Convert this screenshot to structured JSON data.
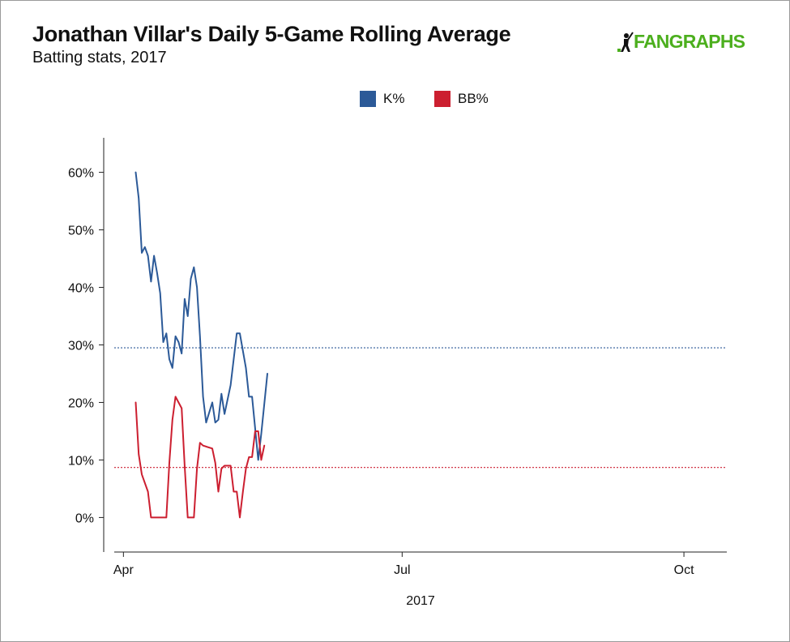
{
  "header": {
    "title": "Jonathan Villar's Daily 5-Game Rolling Average",
    "subtitle": "Batting stats, 2017",
    "logo_text": "FANGRAPHS"
  },
  "colors": {
    "k_series": "#2c5a98",
    "bb_series": "#cc1f30",
    "logo": "#4caf1e"
  },
  "chart_data": {
    "type": "line",
    "title": "Jonathan Villar's Daily 5-Game Rolling Average",
    "subtitle": "Batting stats, 2017",
    "xlabel": "2017",
    "ylabel": "",
    "x_ticks": [
      {
        "label": "Apr",
        "date": "2017-04-01"
      },
      {
        "label": "Jul",
        "date": "2017-07-01"
      },
      {
        "label": "Oct",
        "date": "2017-10-01"
      }
    ],
    "xlim": [
      "2017-03-29",
      "2017-10-15"
    ],
    "y_ticks": [
      0,
      10,
      20,
      30,
      40,
      50,
      60
    ],
    "y_tick_labels": [
      "0%",
      "10%",
      "20%",
      "30%",
      "40%",
      "50%",
      "60%"
    ],
    "ylim": [
      -6,
      66
    ],
    "grid": false,
    "legend_position": "top-center",
    "series": [
      {
        "name": "K%",
        "color": "#2c5a98",
        "league_average": 29.5,
        "points": [
          [
            "2017-04-05",
            60.0
          ],
          [
            "2017-04-06",
            55.5
          ],
          [
            "2017-04-07",
            46.0
          ],
          [
            "2017-04-08",
            47.0
          ],
          [
            "2017-04-09",
            45.5
          ],
          [
            "2017-04-10",
            41.0
          ],
          [
            "2017-04-11",
            45.5
          ],
          [
            "2017-04-12",
            42.5
          ],
          [
            "2017-04-13",
            39.0
          ],
          [
            "2017-04-14",
            30.5
          ],
          [
            "2017-04-15",
            32.0
          ],
          [
            "2017-04-16",
            27.5
          ],
          [
            "2017-04-17",
            26.0
          ],
          [
            "2017-04-18",
            31.5
          ],
          [
            "2017-04-19",
            30.5
          ],
          [
            "2017-04-20",
            28.5
          ],
          [
            "2017-04-21",
            38.0
          ],
          [
            "2017-04-22",
            35.0
          ],
          [
            "2017-04-23",
            41.5
          ],
          [
            "2017-04-24",
            43.5
          ],
          [
            "2017-04-25",
            40.0
          ],
          [
            "2017-04-26",
            31.5
          ],
          [
            "2017-04-27",
            21.0
          ],
          [
            "2017-04-28",
            16.5
          ],
          [
            "2017-04-30",
            20.0
          ],
          [
            "2017-05-01",
            16.5
          ],
          [
            "2017-05-02",
            17.0
          ],
          [
            "2017-05-03",
            21.5
          ],
          [
            "2017-05-04",
            18.0
          ],
          [
            "2017-05-06",
            23.0
          ],
          [
            "2017-05-08",
            32.0
          ],
          [
            "2017-05-09",
            32.0
          ],
          [
            "2017-05-11",
            26.0
          ],
          [
            "2017-05-12",
            21.0
          ],
          [
            "2017-05-13",
            21.0
          ],
          [
            "2017-05-15",
            10.0
          ],
          [
            "2017-05-16",
            14.5
          ],
          [
            "2017-05-18",
            25.0
          ]
        ]
      },
      {
        "name": "BB%",
        "color": "#cc1f30",
        "league_average": 8.7,
        "points": [
          [
            "2017-04-05",
            20.0
          ],
          [
            "2017-04-06",
            11.0
          ],
          [
            "2017-04-07",
            7.5
          ],
          [
            "2017-04-09",
            4.5
          ],
          [
            "2017-04-10",
            0.0
          ],
          [
            "2017-04-15",
            0.0
          ],
          [
            "2017-04-16",
            9.5
          ],
          [
            "2017-04-17",
            17.0
          ],
          [
            "2017-04-18",
            21.0
          ],
          [
            "2017-04-20",
            19.0
          ],
          [
            "2017-04-21",
            9.0
          ],
          [
            "2017-04-22",
            0.0
          ],
          [
            "2017-04-24",
            0.0
          ],
          [
            "2017-04-25",
            8.5
          ],
          [
            "2017-04-26",
            13.0
          ],
          [
            "2017-04-27",
            12.5
          ],
          [
            "2017-04-30",
            12.0
          ],
          [
            "2017-05-01",
            9.5
          ],
          [
            "2017-05-02",
            4.5
          ],
          [
            "2017-05-03",
            8.5
          ],
          [
            "2017-05-04",
            9.0
          ],
          [
            "2017-05-06",
            9.0
          ],
          [
            "2017-05-07",
            4.5
          ],
          [
            "2017-05-08",
            4.5
          ],
          [
            "2017-05-09",
            0.0
          ],
          [
            "2017-05-10",
            4.5
          ],
          [
            "2017-05-11",
            8.5
          ],
          [
            "2017-05-12",
            10.5
          ],
          [
            "2017-05-13",
            10.5
          ],
          [
            "2017-05-14",
            15.0
          ],
          [
            "2017-05-15",
            15.0
          ],
          [
            "2017-05-16",
            10.0
          ],
          [
            "2017-05-17",
            12.5
          ]
        ]
      }
    ]
  }
}
